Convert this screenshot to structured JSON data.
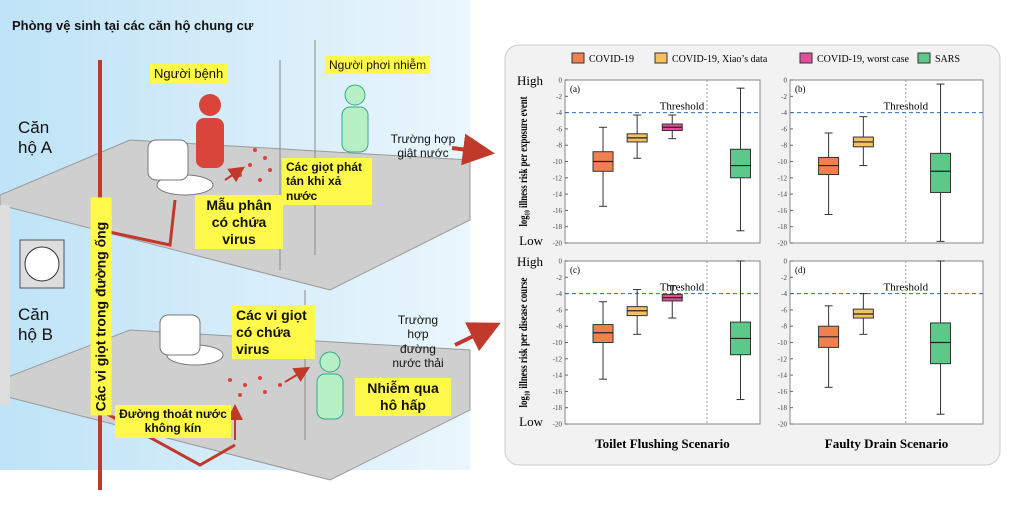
{
  "diagram": {
    "title": "Phòng vệ sinh tại các căn hộ chung cư",
    "apartment_a": "Căn hộ A",
    "apartment_b": "Căn hộ B",
    "patient": "Người bệnh",
    "exposed": "Người phơi nhiễm",
    "flush_case": "Trường hợp giật nước",
    "flush_droplets": "Các giọt phát tán khi xả nước",
    "feces": "Mẫu phân có chứa virus",
    "pipe_droplets": "Các vi giọt trong đường ống",
    "virus_droplets": "Các vi giọt có chứa virus",
    "drain_case": "Trường hợp đường nước thải",
    "inhalation": "Nhiễm qua hô hấp",
    "leaky_drain": "Đường thoát nước không kín"
  },
  "chart_data": [
    {
      "type": "box",
      "panel": "(a)",
      "ylabel": "log₁₀ illness risk per exposure event",
      "top_label": "High",
      "bottom_label": "Low",
      "ylim": [
        -20,
        0
      ],
      "yticks": [
        0,
        -2,
        -4,
        -6,
        -8,
        -10,
        -12,
        -14,
        -16,
        -18,
        -20
      ],
      "threshold": {
        "value": -4,
        "label": "Threshold"
      },
      "series": [
        {
          "name": "COVID-19",
          "color": "#f08050",
          "whisker_low": -15.5,
          "q1": -11.2,
          "median": -10,
          "q3": -8.8,
          "whisker_high": -5.8
        },
        {
          "name": "COVID-19, Xiao’s data",
          "color": "#f5c060",
          "whisker_low": -9.6,
          "q1": -7.6,
          "median": -7.1,
          "q3": -6.6,
          "whisker_high": -4.3
        },
        {
          "name": "COVID-19, worst case",
          "color": "#e0509a",
          "whisker_low": -7.2,
          "q1": -6.2,
          "median": -5.8,
          "q3": -5.4,
          "whisker_high": -4.3
        },
        {
          "name": "SARS",
          "color": "#5cc98a",
          "whisker_low": -18.5,
          "q1": -12,
          "median": -10.5,
          "q3": -8.5,
          "whisker_high": -1
        }
      ]
    },
    {
      "type": "box",
      "panel": "(b)",
      "ylim": [
        -20,
        0
      ],
      "yticks": [
        0,
        -2,
        -4,
        -6,
        -8,
        -10,
        -12,
        -14,
        -16,
        -18,
        -20
      ],
      "threshold": {
        "value": -4,
        "label": "Threshold"
      },
      "series": [
        {
          "name": "COVID-19",
          "color": "#f08050",
          "whisker_low": -16.5,
          "q1": -11.6,
          "median": -10.5,
          "q3": -9.5,
          "whisker_high": -6.5
        },
        {
          "name": "COVID-19, Xiao’s data",
          "color": "#f5c060",
          "whisker_low": -10.5,
          "q1": -8.2,
          "median": -7.6,
          "q3": -7,
          "whisker_high": -4.5
        },
        {
          "name": "COVID-19, worst case",
          "color": "#e0509a",
          "whisker_low": null,
          "q1": null,
          "median": null,
          "q3": null,
          "whisker_high": null
        },
        {
          "name": "SARS",
          "color": "#5cc98a",
          "whisker_low": -19.8,
          "q1": -13.8,
          "median": -11.2,
          "q3": -9,
          "whisker_high": -0.5
        }
      ]
    },
    {
      "type": "box",
      "panel": "(c)",
      "ylabel": "log₁₀ illness risk per disease course",
      "top_label": "High",
      "bottom_label": "Low",
      "xlabel": "Toilet Flushing Scenario",
      "ylim": [
        -20,
        0
      ],
      "yticks": [
        0,
        -2,
        -4,
        -6,
        -8,
        -10,
        -12,
        -14,
        -16,
        -18,
        -20
      ],
      "threshold": {
        "value": -4,
        "label": "Threshold"
      },
      "series": [
        {
          "name": "COVID-19",
          "color": "#f08050",
          "whisker_low": -14.5,
          "q1": -10,
          "median": -8.8,
          "q3": -7.8,
          "whisker_high": -5
        },
        {
          "name": "COVID-19, Xiao’s data",
          "color": "#f5c060",
          "whisker_low": -9,
          "q1": -6.7,
          "median": -6.1,
          "q3": -5.6,
          "whisker_high": -3.5
        },
        {
          "name": "COVID-19, worst case",
          "color": "#e0509a",
          "whisker_low": -7,
          "q1": -4.9,
          "median": -4.5,
          "q3": -4.1,
          "whisker_high": -3
        },
        {
          "name": "SARS",
          "color": "#5cc98a",
          "whisker_low": -17,
          "q1": -11.5,
          "median": -9.5,
          "q3": -7.5,
          "whisker_high": 0
        }
      ]
    },
    {
      "type": "box",
      "panel": "(d)",
      "xlabel": "Faulty Drain Scenario",
      "ylim": [
        -20,
        0
      ],
      "yticks": [
        0,
        -2,
        -4,
        -6,
        -8,
        -10,
        -12,
        -14,
        -16,
        -18,
        -20
      ],
      "threshold": {
        "value": -4,
        "label": "Threshold"
      },
      "series": [
        {
          "name": "COVID-19",
          "color": "#f08050",
          "whisker_low": -15.5,
          "q1": -10.6,
          "median": -9.3,
          "q3": -8,
          "whisker_high": -5.5
        },
        {
          "name": "COVID-19, Xiao’s data",
          "color": "#f5c060",
          "whisker_low": -9,
          "q1": -7,
          "median": -6.5,
          "q3": -5.9,
          "whisker_high": -4
        },
        {
          "name": "COVID-19, worst case",
          "color": "#e0509a",
          "whisker_low": null,
          "q1": null,
          "median": null,
          "q3": null,
          "whisker_high": null
        },
        {
          "name": "SARS",
          "color": "#5cc98a",
          "whisker_low": -18.8,
          "q1": -12.6,
          "median": -10,
          "q3": -7.6,
          "whisker_high": 0
        }
      ]
    }
  ]
}
